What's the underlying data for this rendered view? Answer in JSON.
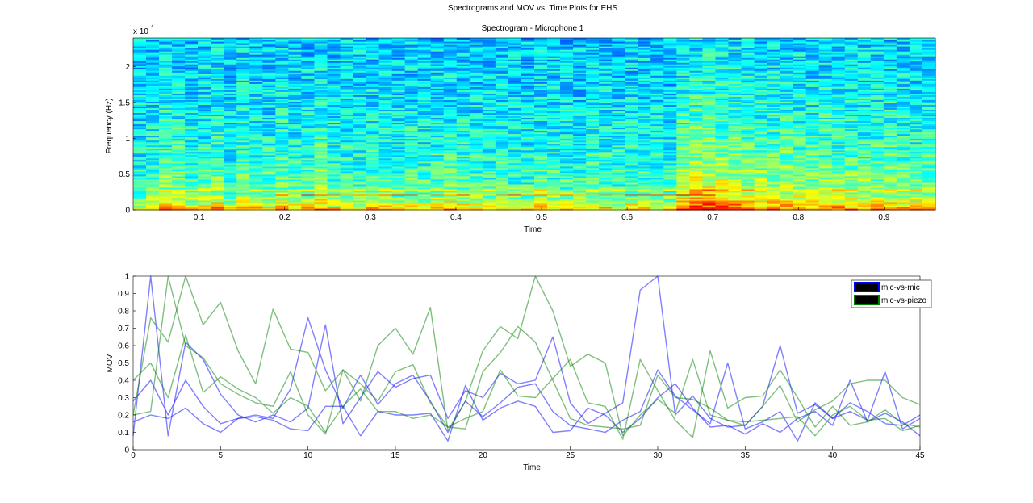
{
  "figure": {
    "suptitle": "Spectrograms and MOV vs. Time Plots for EHS"
  },
  "chart_data": [
    {
      "type": "heatmap",
      "title": "Spectrogram - Microphone 1",
      "xlabel": "Time",
      "ylabel": "Frequency (Hz)",
      "y_exponent_label": "x 10",
      "y_exponent_power": "4",
      "xlim": [
        0.023,
        0.96
      ],
      "ylim": [
        0,
        24000
      ],
      "xticks": [
        0.1,
        0.2,
        0.3,
        0.4,
        0.5,
        0.6,
        0.7,
        0.8,
        0.9
      ],
      "xticklabels": [
        "0.1",
        "0.2",
        "0.3",
        "0.4",
        "0.5",
        "0.6",
        "0.7",
        "0.8",
        "0.9"
      ],
      "yticks": [
        0,
        5000,
        10000,
        15000,
        20000
      ],
      "yticklabels": [
        "0",
        "0.5",
        "1",
        "1.5",
        "2"
      ],
      "colormap": "jet",
      "frame_energy": [
        0.3,
        0.42,
        0.5,
        0.46,
        0.36,
        0.4,
        0.5,
        0.3,
        0.44,
        0.4,
        0.38,
        0.48,
        0.36,
        0.42,
        0.54,
        0.4,
        0.38,
        0.36,
        0.42,
        0.4,
        0.34,
        0.4,
        0.36,
        0.4,
        0.46,
        0.4,
        0.38,
        0.36,
        0.4,
        0.36,
        0.34,
        0.42,
        0.38,
        0.36,
        0.32,
        0.4,
        0.36,
        0.34,
        0.4,
        0.36,
        0.32,
        0.3,
        0.62,
        0.72,
        0.74,
        0.66,
        0.64,
        0.58,
        0.56,
        0.54,
        0.56,
        0.52,
        0.5,
        0.54,
        0.5,
        0.52,
        0.48,
        0.5,
        0.52,
        0.48,
        0.46,
        0.44
      ]
    },
    {
      "type": "line",
      "xlabel": "Time",
      "ylabel": "MOV",
      "xlim": [
        0,
        45
      ],
      "ylim": [
        0,
        1
      ],
      "xticks": [
        0,
        5,
        10,
        15,
        20,
        25,
        30,
        35,
        40,
        45
      ],
      "yticks": [
        0,
        0.1,
        0.2,
        0.3,
        0.4,
        0.5,
        0.6,
        0.7,
        0.8,
        0.9,
        1
      ],
      "legend_position": "top-right",
      "legend": [
        {
          "label": "mic-vs-mic",
          "color": "#0000ff"
        },
        {
          "label": "mic-vs-piezo",
          "color": "#008000"
        }
      ],
      "series": [
        {
          "group": "mic-vs-mic",
          "color": "#0000ff",
          "x": [
            0,
            1,
            2,
            3,
            4,
            5,
            6,
            7,
            8,
            9,
            10,
            11,
            12,
            13,
            14,
            15,
            16,
            17,
            18,
            19,
            20,
            21,
            22,
            23,
            24,
            25,
            26,
            27,
            28,
            29,
            30,
            31,
            32,
            33,
            34,
            35,
            36,
            37,
            38,
            39,
            40,
            41,
            42,
            43,
            44,
            45
          ],
          "values": [
            0.08,
            1.0,
            0.08,
            0.62,
            0.52,
            0.32,
            0.2,
            0.16,
            0.2,
            0.16,
            0.24,
            0.72,
            0.15,
            0.3,
            0.45,
            0.36,
            0.41,
            0.43,
            0.18,
            0.34,
            0.3,
            0.44,
            0.38,
            0.4,
            0.65,
            0.27,
            0.15,
            0.21,
            0.27,
            0.92,
            1.0,
            0.2,
            0.31,
            0.18,
            0.13,
            0.14,
            0.25,
            0.6,
            0.21,
            0.26,
            0.18,
            0.22,
            0.17,
            0.45,
            0.12,
            0.18
          ]
        },
        {
          "group": "mic-vs-mic",
          "color": "#0000ff",
          "x": [
            0,
            1,
            2,
            3,
            4,
            5,
            6,
            7,
            8,
            9,
            10,
            11,
            12,
            13,
            14,
            15,
            16,
            17,
            18,
            19,
            20,
            21,
            22,
            23,
            24,
            25,
            26,
            27,
            28,
            29,
            30,
            31,
            32,
            33,
            34,
            35,
            36,
            37,
            38,
            39,
            40,
            41,
            42,
            43,
            44,
            45
          ],
          "values": [
            0.28,
            0.4,
            0.2,
            0.4,
            0.25,
            0.15,
            0.18,
            0.2,
            0.18,
            0.35,
            0.76,
            0.46,
            0.24,
            0.43,
            0.26,
            0.38,
            0.43,
            0.28,
            0.1,
            0.28,
            0.19,
            0.27,
            0.36,
            0.38,
            0.22,
            0.14,
            0.12,
            0.1,
            0.17,
            0.22,
            0.46,
            0.31,
            0.23,
            0.15,
            0.5,
            0.12,
            0.16,
            0.22,
            0.05,
            0.27,
            0.18,
            0.27,
            0.22,
            0.15,
            0.14,
            0.2
          ]
        },
        {
          "group": "mic-vs-mic",
          "color": "#0000ff",
          "x": [
            0,
            1,
            2,
            3,
            4,
            5,
            6,
            7,
            8,
            9,
            10,
            11,
            12,
            13,
            14,
            15,
            16,
            17,
            18,
            19,
            20,
            21,
            22,
            23,
            24,
            25,
            26,
            27,
            28,
            29,
            30,
            31,
            32,
            33,
            34,
            35,
            36,
            37,
            38,
            39,
            40,
            41,
            42,
            43,
            44,
            45
          ],
          "values": [
            0.16,
            0.2,
            0.18,
            0.24,
            0.15,
            0.1,
            0.18,
            0.19,
            0.17,
            0.12,
            0.11,
            0.25,
            0.25,
            0.08,
            0.22,
            0.2,
            0.2,
            0.21,
            0.05,
            0.37,
            0.17,
            0.24,
            0.28,
            0.25,
            0.1,
            0.11,
            0.24,
            0.2,
            0.1,
            0.18,
            0.3,
            0.38,
            0.24,
            0.13,
            0.14,
            0.09,
            0.15,
            0.1,
            0.18,
            0.22,
            0.14,
            0.4,
            0.16,
            0.21,
            0.16,
            0.08
          ]
        },
        {
          "group": "mic-vs-piezo",
          "color": "#008000",
          "x": [
            0,
            1,
            2,
            3,
            4,
            5,
            6,
            7,
            8,
            9,
            10,
            11,
            12,
            13,
            14,
            15,
            16,
            17,
            18,
            19,
            20,
            21,
            22,
            23,
            24,
            25,
            26,
            27,
            28,
            29,
            30,
            31,
            32,
            33,
            34,
            35,
            36,
            37,
            38,
            39,
            40,
            41,
            42,
            43,
            44,
            45
          ],
          "values": [
            0.2,
            0.76,
            0.62,
            1.0,
            0.72,
            0.85,
            0.57,
            0.38,
            0.81,
            0.58,
            0.56,
            0.34,
            0.46,
            0.28,
            0.6,
            0.7,
            0.55,
            0.82,
            0.11,
            0.28,
            0.57,
            0.71,
            0.64,
            1.0,
            0.8,
            0.48,
            0.55,
            0.5,
            0.08,
            0.2,
            0.29,
            0.21,
            0.52,
            0.2,
            0.17,
            0.14,
            0.25,
            0.37,
            0.16,
            0.23,
            0.28,
            0.38,
            0.4,
            0.4,
            0.3,
            0.26
          ]
        },
        {
          "group": "mic-vs-piezo",
          "color": "#008000",
          "x": [
            0,
            1,
            2,
            3,
            4,
            5,
            6,
            7,
            8,
            9,
            10,
            11,
            12,
            13,
            14,
            15,
            16,
            17,
            18,
            19,
            20,
            21,
            22,
            23,
            24,
            25,
            26,
            27,
            28,
            29,
            30,
            31,
            32,
            33,
            34,
            35,
            36,
            37,
            38,
            39,
            40,
            41,
            42,
            43,
            44,
            45
          ],
          "values": [
            0.2,
            0.22,
            1.0,
            0.6,
            0.53,
            0.38,
            0.32,
            0.27,
            0.25,
            0.45,
            0.2,
            0.09,
            0.46,
            0.38,
            0.28,
            0.45,
            0.49,
            0.27,
            0.13,
            0.18,
            0.22,
            0.46,
            0.31,
            0.3,
            0.41,
            0.52,
            0.27,
            0.25,
            0.06,
            0.52,
            0.34,
            0.17,
            0.07,
            0.57,
            0.24,
            0.3,
            0.31,
            0.46,
            0.3,
            0.13,
            0.25,
            0.14,
            0.16,
            0.23,
            0.15,
            0.13
          ]
        },
        {
          "group": "mic-vs-piezo",
          "color": "#008000",
          "x": [
            0,
            1,
            2,
            3,
            4,
            5,
            6,
            7,
            8,
            9,
            10,
            11,
            12,
            13,
            14,
            15,
            16,
            17,
            18,
            19,
            20,
            21,
            22,
            23,
            24,
            25,
            26,
            27,
            28,
            29,
            30,
            31,
            32,
            33,
            34,
            35,
            36,
            37,
            38,
            39,
            40,
            41,
            42,
            43,
            44,
            45
          ],
          "values": [
            0.4,
            0.5,
            0.3,
            0.66,
            0.33,
            0.42,
            0.35,
            0.3,
            0.21,
            0.3,
            0.25,
            0.1,
            0.25,
            0.35,
            0.22,
            0.22,
            0.18,
            0.2,
            0.13,
            0.12,
            0.45,
            0.56,
            0.71,
            0.62,
            0.4,
            0.18,
            0.14,
            0.13,
            0.12,
            0.14,
            0.43,
            0.3,
            0.29,
            0.24,
            0.17,
            0.16,
            0.17,
            0.18,
            0.19,
            0.08,
            0.2,
            0.25,
            0.17,
            0.18,
            0.11,
            0.14
          ]
        }
      ]
    }
  ]
}
